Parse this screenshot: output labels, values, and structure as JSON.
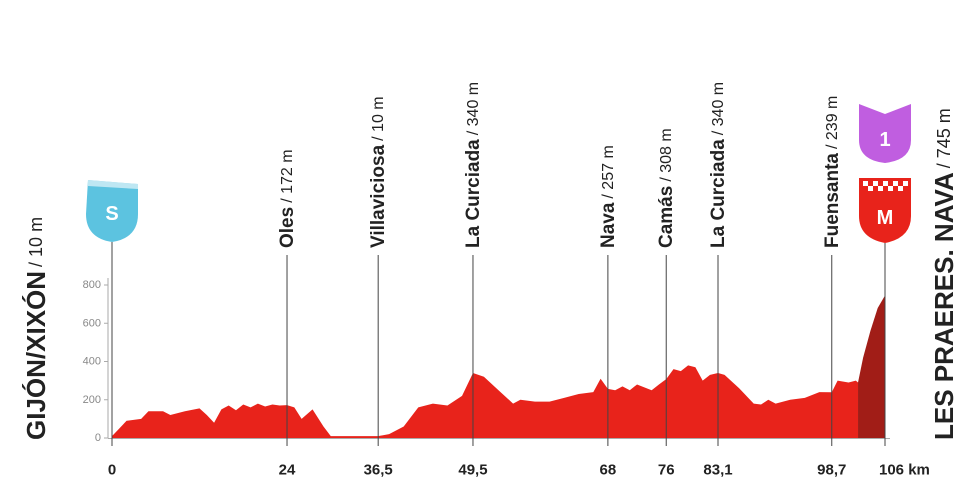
{
  "chart_data": {
    "type": "area",
    "xlim": [
      0,
      106
    ],
    "ylim": [
      0,
      800
    ],
    "yticks": [
      0,
      200,
      400,
      600,
      800
    ],
    "xticks": [
      0,
      24,
      {
        "value": 36.5,
        "label": "36,5"
      },
      {
        "value": 49.5,
        "label": "49,5"
      },
      68,
      76,
      {
        "value": 83.1,
        "label": "83,1"
      },
      {
        "value": 98.7,
        "label": "98,7"
      },
      {
        "value": 106,
        "label": "106 km"
      }
    ],
    "series": [
      {
        "color": "#e8231b",
        "x": [
          0,
          1,
          2,
          4,
          5,
          7,
          8,
          10,
          12,
          13,
          14,
          15,
          16,
          17,
          18,
          19,
          20,
          21,
          22,
          23,
          24,
          25,
          26,
          27.5,
          29,
          30,
          36.5,
          38,
          40,
          42,
          44,
          46,
          48,
          49.5,
          51,
          53,
          55,
          56,
          58,
          60,
          62,
          64,
          66,
          67,
          68,
          69,
          70,
          71,
          72,
          74,
          75,
          76,
          77,
          78,
          79,
          80,
          81,
          82,
          83.1,
          84,
          86,
          88,
          89,
          90,
          91,
          93,
          95,
          97,
          98.7,
          99.5,
          101,
          102,
          102.3
        ],
        "values": [
          10,
          50,
          90,
          100,
          140,
          140,
          120,
          140,
          155,
          120,
          80,
          150,
          170,
          145,
          175,
          160,
          180,
          165,
          175,
          170,
          172,
          160,
          100,
          150,
          60,
          10,
          10,
          20,
          60,
          160,
          180,
          170,
          220,
          340,
          320,
          250,
          180,
          200,
          190,
          190,
          210,
          230,
          240,
          310,
          257,
          250,
          270,
          250,
          280,
          250,
          280,
          308,
          360,
          350,
          380,
          370,
          300,
          330,
          340,
          330,
          260,
          180,
          175,
          200,
          180,
          200,
          210,
          240,
          239,
          300,
          290,
          300,
          290
        ]
      },
      {
        "color": "#a11d17",
        "x": [
          102.3,
          103,
          104,
          105,
          106
        ],
        "values": [
          290,
          420,
          560,
          680,
          745
        ]
      }
    ],
    "waypoints": [
      {
        "name": "Oles",
        "km": 24,
        "elevation": 172,
        "elevation_label": "/ 172 m"
      },
      {
        "name": "Villaviciosa",
        "km": 36.5,
        "elevation": 10,
        "elevation_label": "/ 10 m"
      },
      {
        "name": "La Curciada",
        "km": 49.5,
        "elevation": 340,
        "elevation_label": "/ 340 m"
      },
      {
        "name": "Nava",
        "km": 68,
        "elevation": 257,
        "elevation_label": "/ 257 m"
      },
      {
        "name": "Camás",
        "km": 76,
        "elevation": 308,
        "elevation_label": "/ 308 m"
      },
      {
        "name": "La Curciada",
        "km": 83.1,
        "elevation": 340,
        "elevation_label": "/ 340 m"
      },
      {
        "name": "Fuensanta",
        "km": 98.7,
        "elevation": 239,
        "elevation_label": "/ 239 m"
      }
    ],
    "start": {
      "name": "GIJÓN/XIXÓN",
      "elevation": 10,
      "elevation_label": "/ 10 m",
      "badge": "S"
    },
    "finish": {
      "name": "LES PRAERES. NAVA",
      "elevation": 745,
      "elevation_label": "/ 745 m",
      "badges": [
        "1",
        "M"
      ]
    }
  }
}
